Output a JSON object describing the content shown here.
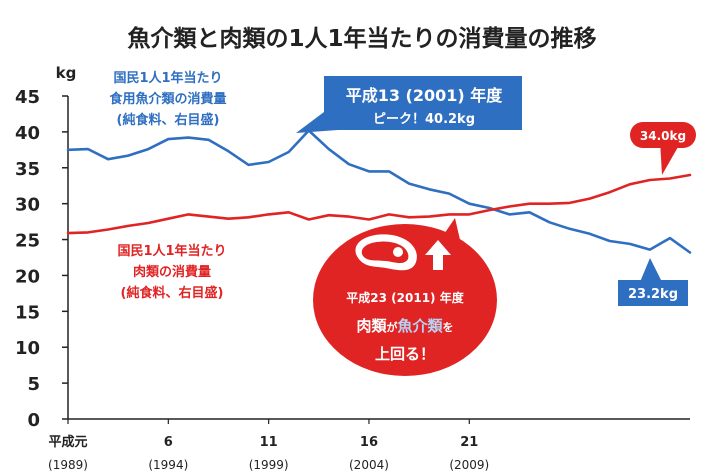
{
  "colors": {
    "fish": "#2f6fc1",
    "meat": "#e02424",
    "callout_blue": "#2f6fc1",
    "callout_red": "#e02424",
    "axis": "#222222",
    "text": "#222222"
  },
  "chart_data": {
    "type": "line",
    "title": "魚介類と肉類の1人1年当たりの消費量の推移",
    "ylabel": "kg",
    "ylim": [
      0,
      45
    ],
    "yticks": [
      0,
      5,
      10,
      15,
      20,
      25,
      30,
      35,
      40,
      45
    ],
    "xlim": [
      1989,
      2020
    ],
    "x_ticks": [
      {
        "x": 1989,
        "era": "平成元",
        "year": "(1989)"
      },
      {
        "x": 1994,
        "era": "6",
        "year": "(1994)"
      },
      {
        "x": 1999,
        "era": "11",
        "year": "(1999)"
      },
      {
        "x": 2004,
        "era": "16",
        "year": "(2004)"
      },
      {
        "x": 2009,
        "era": "21",
        "year": "(2009)"
      }
    ],
    "x": [
      1989,
      1990,
      1991,
      1992,
      1993,
      1994,
      1995,
      1996,
      1997,
      1998,
      1999,
      2000,
      2001,
      2002,
      2003,
      2004,
      2005,
      2006,
      2007,
      2008,
      2009,
      2010,
      2011,
      2012,
      2013,
      2014,
      2015,
      2016,
      2017,
      2018,
      2019,
      2020
    ],
    "series": [
      {
        "name": "国民1人1年当たり 食用魚介類の消費量 (純食料、右目盛)",
        "color_key": "fish",
        "values": [
          37.5,
          37.6,
          36.2,
          36.7,
          37.6,
          39.0,
          39.2,
          38.9,
          37.3,
          35.4,
          35.8,
          37.2,
          40.2,
          37.6,
          35.5,
          34.5,
          34.5,
          32.8,
          32.0,
          31.4,
          30.0,
          29.4,
          28.5,
          28.8,
          27.4,
          26.5,
          25.8,
          24.8,
          24.4,
          23.6,
          25.2,
          23.2
        ]
      },
      {
        "name": "国民1人1年当たり 肉類の消費量 (純食料、右目盛)",
        "color_key": "meat",
        "values": [
          25.9,
          26.0,
          26.4,
          26.9,
          27.3,
          27.9,
          28.5,
          28.2,
          27.9,
          28.1,
          28.5,
          28.8,
          27.8,
          28.4,
          28.2,
          27.8,
          28.5,
          28.1,
          28.2,
          28.5,
          28.5,
          29.1,
          29.6,
          30.0,
          30.0,
          30.1,
          30.7,
          31.6,
          32.7,
          33.3,
          33.5,
          34.0
        ]
      }
    ],
    "labels": {
      "fish_title_1": "国民1人1年当たり",
      "fish_title_2": "食用魚介類の消費量",
      "fish_title_3": "(純食料、右目盛)",
      "meat_title_1": "国民1人1年当たり",
      "meat_title_2": "肉類の消費量",
      "meat_title_3": "(純食料、右目盛)",
      "fish_end": "23.2kg",
      "meat_end": "34.0kg",
      "peak_line1": "平成13 (2001) 年度",
      "peak_line2": "ピーク！40.2kg",
      "cross_line1": "平成23 (2011) 年度",
      "cross_line2_a": "肉類",
      "cross_line2_b": "が",
      "cross_line2_c": "魚介類",
      "cross_line2_d": "を",
      "cross_line3": "上回る！"
    }
  }
}
